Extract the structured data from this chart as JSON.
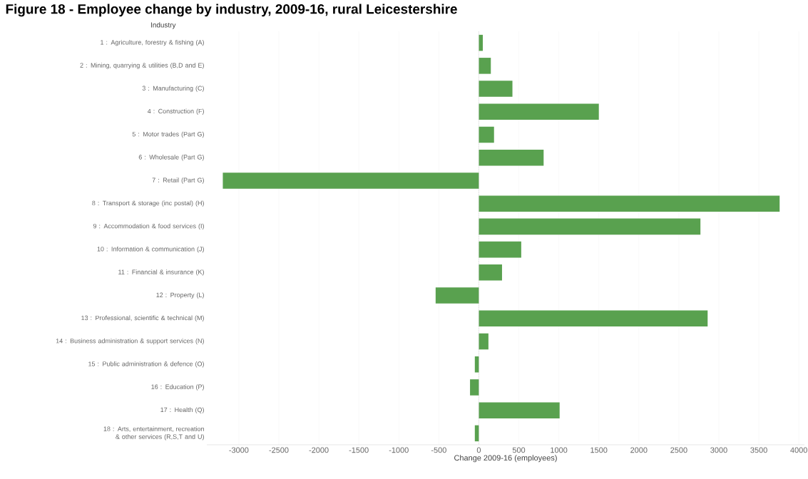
{
  "chart_data": {
    "type": "bar",
    "orientation": "horizontal",
    "title": "Figure 18 - Employee change by industry, 2009-16, rural Leicestershire",
    "ylabel": "Industry",
    "xlabel": "Change 2009-16 (employees)",
    "categories": [
      "1 : Agriculture, forestry & fishing (A)",
      "2 : Mining, quarrying & utilities (B,D and E)",
      "3 : Manufacturing (C)",
      "4 : Construction (F)",
      "5 : Motor trades (Part G)",
      "6 : Wholesale (Part G)",
      "7 : Retail (Part G)",
      "8 : Transport & storage (inc postal) (H)",
      "9 : Accommodation & food services (I)",
      "10 : Information & communication (J)",
      "11 : Financial & insurance (K)",
      "12 : Property (L)",
      "13 : Professional, scientific & technical (M)",
      "14 : Business administration & support services (N)",
      "15 : Public administration & defence (O)",
      "16 : Education (P)",
      "17 : Health (Q)",
      "18 : Arts, entertainment, recreation & other services (R,S,T and U)"
    ],
    "values": [
      50,
      150,
      420,
      1500,
      190,
      810,
      -3200,
      3760,
      2770,
      530,
      290,
      -540,
      2860,
      120,
      -50,
      -110,
      1010,
      -50
    ],
    "ref_lines": [
      {
        "axis": "x",
        "value": 0,
        "line_style": "dotted",
        "color": "#b2b2b2"
      }
    ],
    "color": "#59a14f",
    "xlim": [
      -3400,
      4070
    ],
    "xticks": [
      -3000,
      -2500,
      -2000,
      -1500,
      -1000,
      -500,
      0,
      500,
      1000,
      1500,
      2000,
      2500,
      3000,
      3500,
      4000
    ],
    "grid": "x"
  }
}
